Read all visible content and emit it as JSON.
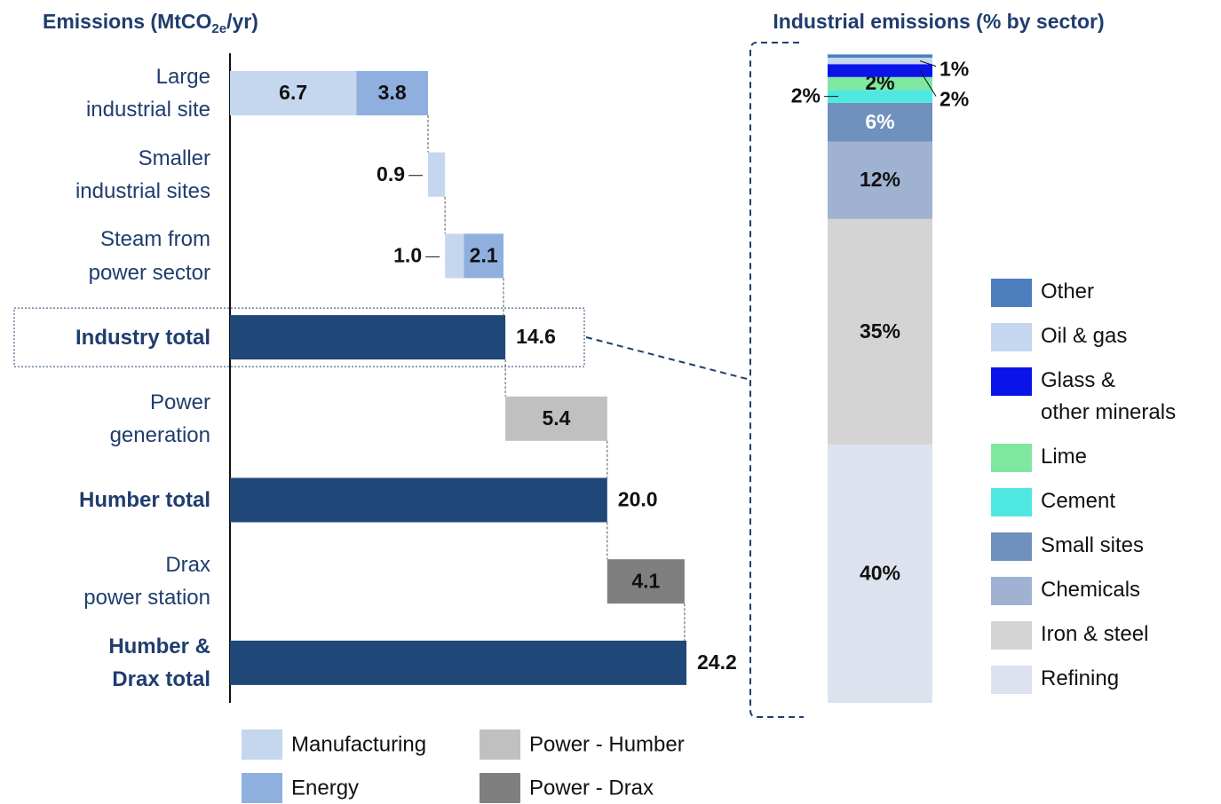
{
  "chart_data": [
    {
      "type": "waterfall",
      "title": {
        "text": "Emissions (MtCO",
        "subscript": "2e",
        "suffix": "/yr)"
      },
      "categories": [
        "Large\nindustrial site",
        "Smaller\nindustrial sites",
        "Steam from\npower sector",
        "Industry total",
        "Power\ngeneration",
        "Humber total",
        "Drax\npower station",
        "Humber &\nDrax total"
      ],
      "bold": [
        false,
        false,
        false,
        true,
        false,
        true,
        false,
        true
      ],
      "highlight": 3,
      "series": [
        {
          "name": "Manufacturing",
          "color": "#c5d6ef",
          "values": [
            6.7,
            0.9,
            1.0,
            null,
            null,
            null,
            null,
            null
          ],
          "value_labels": [
            "6.7",
            "0.9",
            "1.0",
            null,
            null,
            null,
            null,
            null
          ]
        },
        {
          "name": "Energy",
          "color": "#8fb0df",
          "values": [
            3.8,
            null,
            2.1,
            null,
            null,
            null,
            null,
            null
          ],
          "value_labels": [
            "3.8",
            null,
            "2.1",
            null,
            null,
            null,
            null,
            null
          ]
        },
        {
          "name": "Power - Humber",
          "color": "#c0c0c0",
          "values": [
            null,
            null,
            null,
            null,
            5.4,
            null,
            null,
            null
          ],
          "value_labels": [
            null,
            null,
            null,
            null,
            "5.4",
            null,
            null,
            null
          ]
        },
        {
          "name": "Power - Drax",
          "color": "#7f7f7f",
          "values": [
            null,
            null,
            null,
            null,
            null,
            null,
            4.1,
            null
          ],
          "value_labels": [
            null,
            null,
            null,
            null,
            null,
            null,
            "4.1",
            null
          ]
        }
      ],
      "totals": [
        null,
        null,
        null,
        14.6,
        null,
        20.0,
        null,
        24.2
      ],
      "total_labels": [
        null,
        null,
        null,
        "14.6",
        null,
        "20.0",
        null,
        "24.2"
      ],
      "total_color": "#1f4778",
      "xlim": [
        0,
        25
      ]
    },
    {
      "type": "stacked-column",
      "title": "Industrial emissions (% by sector)",
      "ylim": [
        0,
        100
      ],
      "series": [
        {
          "name": "Refining",
          "color": "#dde3ee",
          "values": [
            40
          ],
          "value_labels": [
            "40%"
          ],
          "label_position": "inside",
          "label_color": "#111111"
        },
        {
          "name": "Iron & steel",
          "color": "#d4d4d4",
          "values": [
            35
          ],
          "value_labels": [
            "35%"
          ],
          "label_position": "inside",
          "label_color": "#111111"
        },
        {
          "name": "Chemicals",
          "color": "#9fb2d1",
          "values": [
            12
          ],
          "value_labels": [
            "12%"
          ],
          "label_position": "inside",
          "label_color": "#111111"
        },
        {
          "name": "Small sites",
          "color": "#7090bd",
          "values": [
            6
          ],
          "value_labels": [
            "6%"
          ],
          "label_position": "inside",
          "label_color": "#ffffff"
        },
        {
          "name": "Cement",
          "color": "#4ee8e0",
          "values": [
            2
          ],
          "value_labels": [
            "2%"
          ],
          "label_position": "left",
          "label_color": "#111111"
        },
        {
          "name": "Lime",
          "color": "#7ee8a0",
          "values": [
            2
          ],
          "value_labels": [
            "2%"
          ],
          "label_position": "inside",
          "label_color": "#111111"
        },
        {
          "name": "Glass &\nother minerals",
          "color": "#0a14e8",
          "values": [
            2
          ],
          "value_labels": [
            "2%"
          ],
          "label_position": "right",
          "label_color": "#111111"
        },
        {
          "name": "Oil & gas",
          "color": "#c5d6ef",
          "values": [
            1
          ],
          "value_labels": [
            "1%"
          ],
          "label_position": "right",
          "label_color": "#111111"
        },
        {
          "name": "Other",
          "color": "#4d7fbf",
          "values": [
            0.5
          ],
          "value_labels": [
            null
          ],
          "label_position": null,
          "label_color": "#111111"
        }
      ]
    }
  ]
}
